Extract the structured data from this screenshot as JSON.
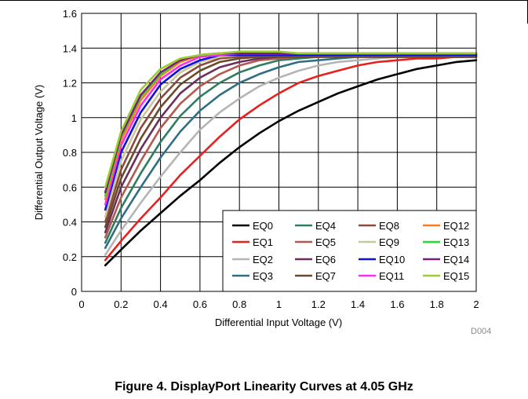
{
  "chart_data": {
    "type": "line",
    "title": "",
    "xlabel": "Differential Input Voltage (V)",
    "ylabel": "Differential Output Voltage (V)",
    "xlim": [
      0,
      2
    ],
    "ylim": [
      0,
      1.6
    ],
    "xticks": [
      "0",
      "0.2",
      "0.4",
      "0.6",
      "0.8",
      "1",
      "1.2",
      "1.4",
      "1.6",
      "1.8",
      "2"
    ],
    "yticks": [
      "0",
      "0.2",
      "0.4",
      "0.6",
      "0.8",
      "1",
      "1.2",
      "1.4",
      "1.6"
    ],
    "grid": true,
    "legend_position": "bottom-right",
    "x": [
      0.12,
      0.2,
      0.3,
      0.4,
      0.5,
      0.6,
      0.7,
      0.8,
      0.9,
      1.0,
      1.1,
      1.2,
      1.3,
      1.4,
      1.5,
      1.6,
      1.7,
      1.8,
      1.9,
      2.0
    ],
    "series": [
      {
        "name": "EQ0",
        "color": "#000000",
        "values": [
          0.15,
          0.24,
          0.35,
          0.45,
          0.55,
          0.64,
          0.74,
          0.83,
          0.91,
          0.98,
          1.04,
          1.09,
          1.14,
          1.18,
          1.22,
          1.25,
          1.28,
          1.3,
          1.32,
          1.33
        ]
      },
      {
        "name": "EQ1",
        "color": "#e8201e",
        "values": [
          0.18,
          0.29,
          0.42,
          0.54,
          0.67,
          0.78,
          0.89,
          0.99,
          1.07,
          1.14,
          1.2,
          1.24,
          1.27,
          1.3,
          1.32,
          1.33,
          1.34,
          1.34,
          1.35,
          1.35
        ]
      },
      {
        "name": "EQ2",
        "color": "#b5b5b5",
        "values": [
          0.21,
          0.35,
          0.51,
          0.66,
          0.8,
          0.93,
          1.03,
          1.11,
          1.18,
          1.23,
          1.27,
          1.3,
          1.32,
          1.33,
          1.34,
          1.35,
          1.35,
          1.35,
          1.35,
          1.35
        ]
      },
      {
        "name": "EQ3",
        "color": "#2f6f84",
        "values": [
          0.25,
          0.42,
          0.6,
          0.77,
          0.92,
          1.04,
          1.13,
          1.2,
          1.25,
          1.29,
          1.32,
          1.33,
          1.34,
          1.35,
          1.35,
          1.35,
          1.35,
          1.35,
          1.35,
          1.35
        ]
      },
      {
        "name": "EQ4",
        "color": "#2e7d5e",
        "values": [
          0.28,
          0.48,
          0.68,
          0.86,
          1.01,
          1.12,
          1.2,
          1.26,
          1.3,
          1.33,
          1.34,
          1.35,
          1.35,
          1.35,
          1.35,
          1.35,
          1.35,
          1.35,
          1.35,
          1.35
        ]
      },
      {
        "name": "EQ5",
        "color": "#b35a4e",
        "values": [
          0.31,
          0.54,
          0.75,
          0.94,
          1.08,
          1.18,
          1.25,
          1.3,
          1.33,
          1.34,
          1.35,
          1.35,
          1.35,
          1.35,
          1.35,
          1.35,
          1.35,
          1.35,
          1.35,
          1.35
        ]
      },
      {
        "name": "EQ6",
        "color": "#6b2f5d",
        "values": [
          0.34,
          0.6,
          0.82,
          1.0,
          1.14,
          1.23,
          1.29,
          1.32,
          1.34,
          1.35,
          1.35,
          1.35,
          1.35,
          1.35,
          1.35,
          1.35,
          1.35,
          1.35,
          1.35,
          1.35
        ]
      },
      {
        "name": "EQ7",
        "color": "#6b4a2a",
        "values": [
          0.37,
          0.65,
          0.88,
          1.06,
          1.19,
          1.27,
          1.32,
          1.34,
          1.35,
          1.35,
          1.35,
          1.35,
          1.35,
          1.35,
          1.35,
          1.35,
          1.35,
          1.35,
          1.35,
          1.35
        ]
      },
      {
        "name": "EQ8",
        "color": "#8b4a3c",
        "values": [
          0.4,
          0.7,
          0.94,
          1.11,
          1.23,
          1.3,
          1.34,
          1.35,
          1.36,
          1.36,
          1.36,
          1.36,
          1.36,
          1.36,
          1.36,
          1.36,
          1.36,
          1.36,
          1.36,
          1.36
        ]
      },
      {
        "name": "EQ9",
        "color": "#c8c89a",
        "values": [
          0.43,
          0.75,
          0.99,
          1.15,
          1.26,
          1.32,
          1.35,
          1.36,
          1.36,
          1.36,
          1.36,
          1.36,
          1.36,
          1.36,
          1.36,
          1.36,
          1.36,
          1.36,
          1.36,
          1.36
        ]
      },
      {
        "name": "EQ10",
        "color": "#1010e0",
        "values": [
          0.47,
          0.8,
          1.03,
          1.19,
          1.28,
          1.33,
          1.36,
          1.36,
          1.36,
          1.36,
          1.36,
          1.36,
          1.36,
          1.36,
          1.36,
          1.36,
          1.36,
          1.36,
          1.36,
          1.36
        ]
      },
      {
        "name": "EQ11",
        "color": "#ff2cf0",
        "values": [
          0.5,
          0.84,
          1.07,
          1.22,
          1.3,
          1.35,
          1.36,
          1.37,
          1.37,
          1.37,
          1.37,
          1.37,
          1.37,
          1.37,
          1.37,
          1.37,
          1.37,
          1.37,
          1.37,
          1.37
        ]
      },
      {
        "name": "EQ12",
        "color": "#ff7a18",
        "values": [
          0.53,
          0.87,
          1.1,
          1.24,
          1.32,
          1.36,
          1.37,
          1.37,
          1.37,
          1.37,
          1.37,
          1.37,
          1.37,
          1.37,
          1.37,
          1.37,
          1.37,
          1.37,
          1.37,
          1.37
        ]
      },
      {
        "name": "EQ13",
        "color": "#23e02a",
        "values": [
          0.55,
          0.89,
          1.12,
          1.25,
          1.33,
          1.36,
          1.37,
          1.37,
          1.37,
          1.37,
          1.37,
          1.37,
          1.37,
          1.37,
          1.37,
          1.37,
          1.37,
          1.37,
          1.37,
          1.37
        ]
      },
      {
        "name": "EQ14",
        "color": "#7a1e7a",
        "values": [
          0.57,
          0.9,
          1.13,
          1.26,
          1.33,
          1.36,
          1.37,
          1.37,
          1.37,
          1.37,
          1.37,
          1.37,
          1.37,
          1.37,
          1.37,
          1.37,
          1.37,
          1.37,
          1.37,
          1.37
        ]
      },
      {
        "name": "EQ15",
        "color": "#9acd32",
        "values": [
          0.6,
          0.92,
          1.16,
          1.28,
          1.34,
          1.36,
          1.37,
          1.38,
          1.38,
          1.38,
          1.37,
          1.37,
          1.37,
          1.37,
          1.37,
          1.37,
          1.37,
          1.37,
          1.37,
          1.37
        ]
      }
    ],
    "legend_order": [
      "EQ0",
      "EQ4",
      "EQ8",
      "EQ12",
      "EQ1",
      "EQ5",
      "EQ9",
      "EQ13",
      "EQ2",
      "EQ6",
      "EQ10",
      "EQ14",
      "EQ3",
      "EQ7",
      "EQ11",
      "EQ15"
    ]
  },
  "figure_id": "D004",
  "caption": "Figure 4. DisplayPort Linearity Curves at 4.05 GHz"
}
